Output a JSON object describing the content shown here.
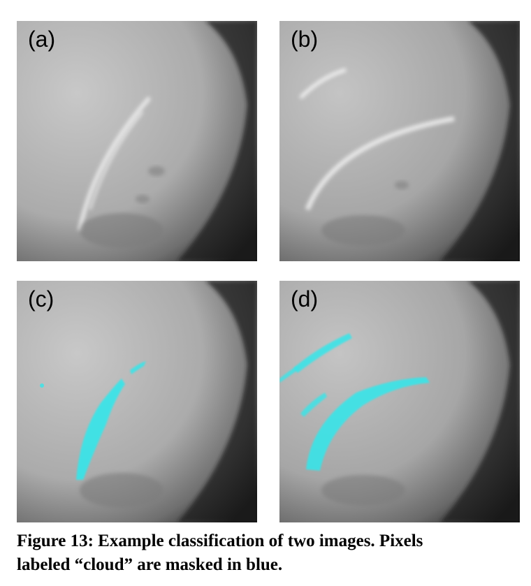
{
  "figure": {
    "panels": [
      {
        "label": "(a)",
        "cloud_mask": false
      },
      {
        "label": "(b)",
        "cloud_mask": false
      },
      {
        "label": "(c)",
        "cloud_mask": true
      },
      {
        "label": "(d)",
        "cloud_mask": true
      }
    ],
    "caption_line1": "Figure 13: Example classification of two images. Pixels",
    "caption_line2": "labeled “cloud” are masked in blue.",
    "mask_color": "#35e6ea"
  }
}
